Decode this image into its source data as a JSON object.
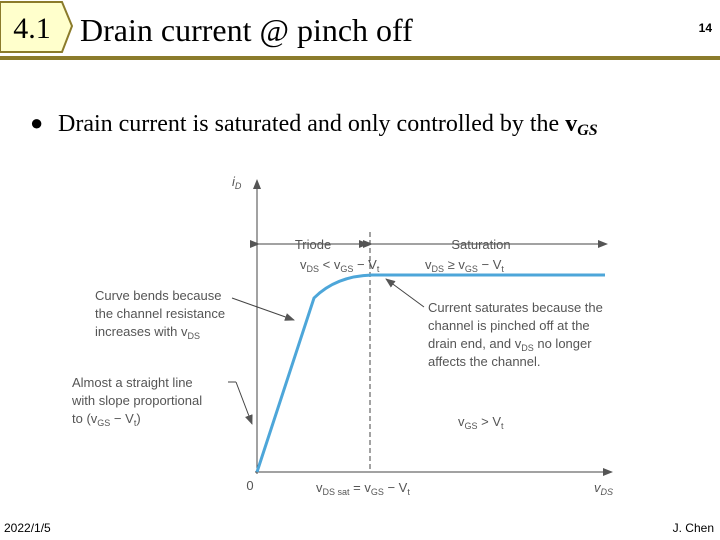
{
  "header": {
    "section": "4.1",
    "title": "Drain current @ pinch off",
    "page": "14"
  },
  "bullet": [
    "Drain current is saturated and only controlled by the ",
    "v",
    "GS"
  ],
  "figure": {
    "y_axis_label": [
      "i",
      "D"
    ],
    "origin": "0",
    "x_axis_label": [
      "v",
      "DS"
    ],
    "x_marker": [
      "v",
      "DS sat",
      " = v",
      "GS",
      " − V",
      "t"
    ],
    "regions": [
      {
        "name": "Triode",
        "condition": [
          "v",
          "DS",
          " < v",
          "GS",
          " − V",
          "t"
        ]
      },
      {
        "name": "Saturation",
        "condition": [
          "v",
          "DS",
          " ≥ v",
          "GS",
          " − V",
          "t"
        ]
      }
    ],
    "annotations": [
      {
        "lines": [
          [
            "Curve bends because"
          ],
          [
            "the channel resistance"
          ],
          [
            "increases with v",
            "DS"
          ]
        ]
      },
      {
        "lines": [
          [
            "Almost a straight line"
          ],
          [
            "with slope proportional"
          ],
          [
            "to (v",
            "GS",
            " − V",
            "t",
            ")"
          ]
        ]
      },
      {
        "lines": [
          [
            "Current saturates because the"
          ],
          [
            "channel is pinched off at the"
          ],
          [
            "drain end, and v",
            "DS",
            " no longer"
          ],
          [
            "affects the channel."
          ]
        ]
      }
    ],
    "curve_label": [
      "v",
      "GS",
      " > V",
      "t"
    ]
  },
  "footer": {
    "date": "2022/1/5",
    "author": "J. Chen"
  }
}
